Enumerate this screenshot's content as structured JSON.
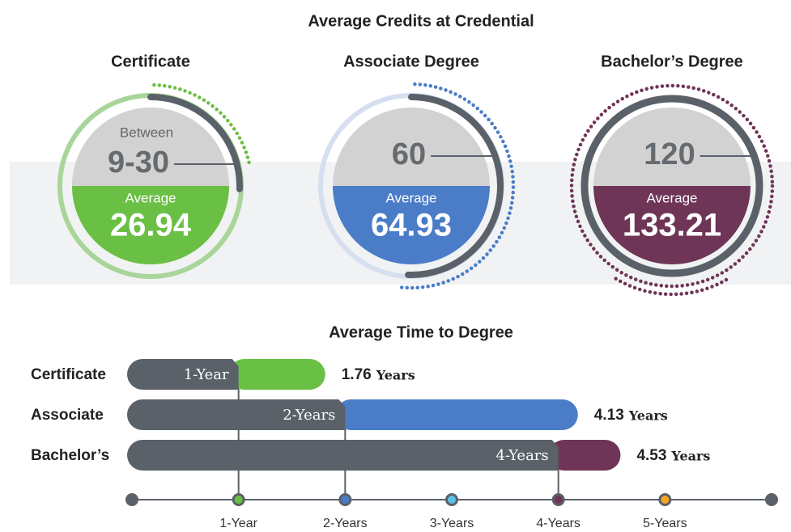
{
  "credits": {
    "title": "Average Credits at Credential",
    "average_label": "Average",
    "items": [
      {
        "name": "Certificate",
        "prefix": "Between",
        "standard": "9-30",
        "average": "26.94",
        "color": "#6abf45",
        "light": "#a8d59a"
      },
      {
        "name": "Associate Degree",
        "standard": "60",
        "average": "64.93",
        "color": "#4a7cc7",
        "light": "#d6dff0"
      },
      {
        "name": "Bachelor’s Degree",
        "standard": "120",
        "average": "133.21",
        "color": "#6f3557",
        "light": "#6f3557"
      }
    ]
  },
  "time": {
    "title": "Average Time to Degree",
    "unit": "Years",
    "xlim": [
      0,
      6
    ],
    "xticks": [
      {
        "value": 1,
        "label": "1-Year"
      },
      {
        "value": 2,
        "label": "2-Years"
      },
      {
        "value": 3,
        "label": "3-Years"
      },
      {
        "value": 4,
        "label": "4-Years"
      },
      {
        "value": 5,
        "label": "5-Years"
      }
    ],
    "tick_colors": [
      "#6abf45",
      "#4a7cc7",
      "#5bc2e7",
      "#6f3557",
      "#f5a623"
    ],
    "rows": [
      {
        "name": "Certificate",
        "standard": {
          "value": 1,
          "label": "1-Year"
        },
        "average": 1.76,
        "color": "#6abf45"
      },
      {
        "name": "Associate",
        "standard": {
          "value": 2,
          "label": "2-Years"
        },
        "average": 4.13,
        "color": "#4a7cc7"
      },
      {
        "name": "Bachelor’s",
        "standard": {
          "value": 4,
          "label": "4-Years"
        },
        "average": 4.53,
        "color": "#6f3557"
      }
    ]
  }
}
